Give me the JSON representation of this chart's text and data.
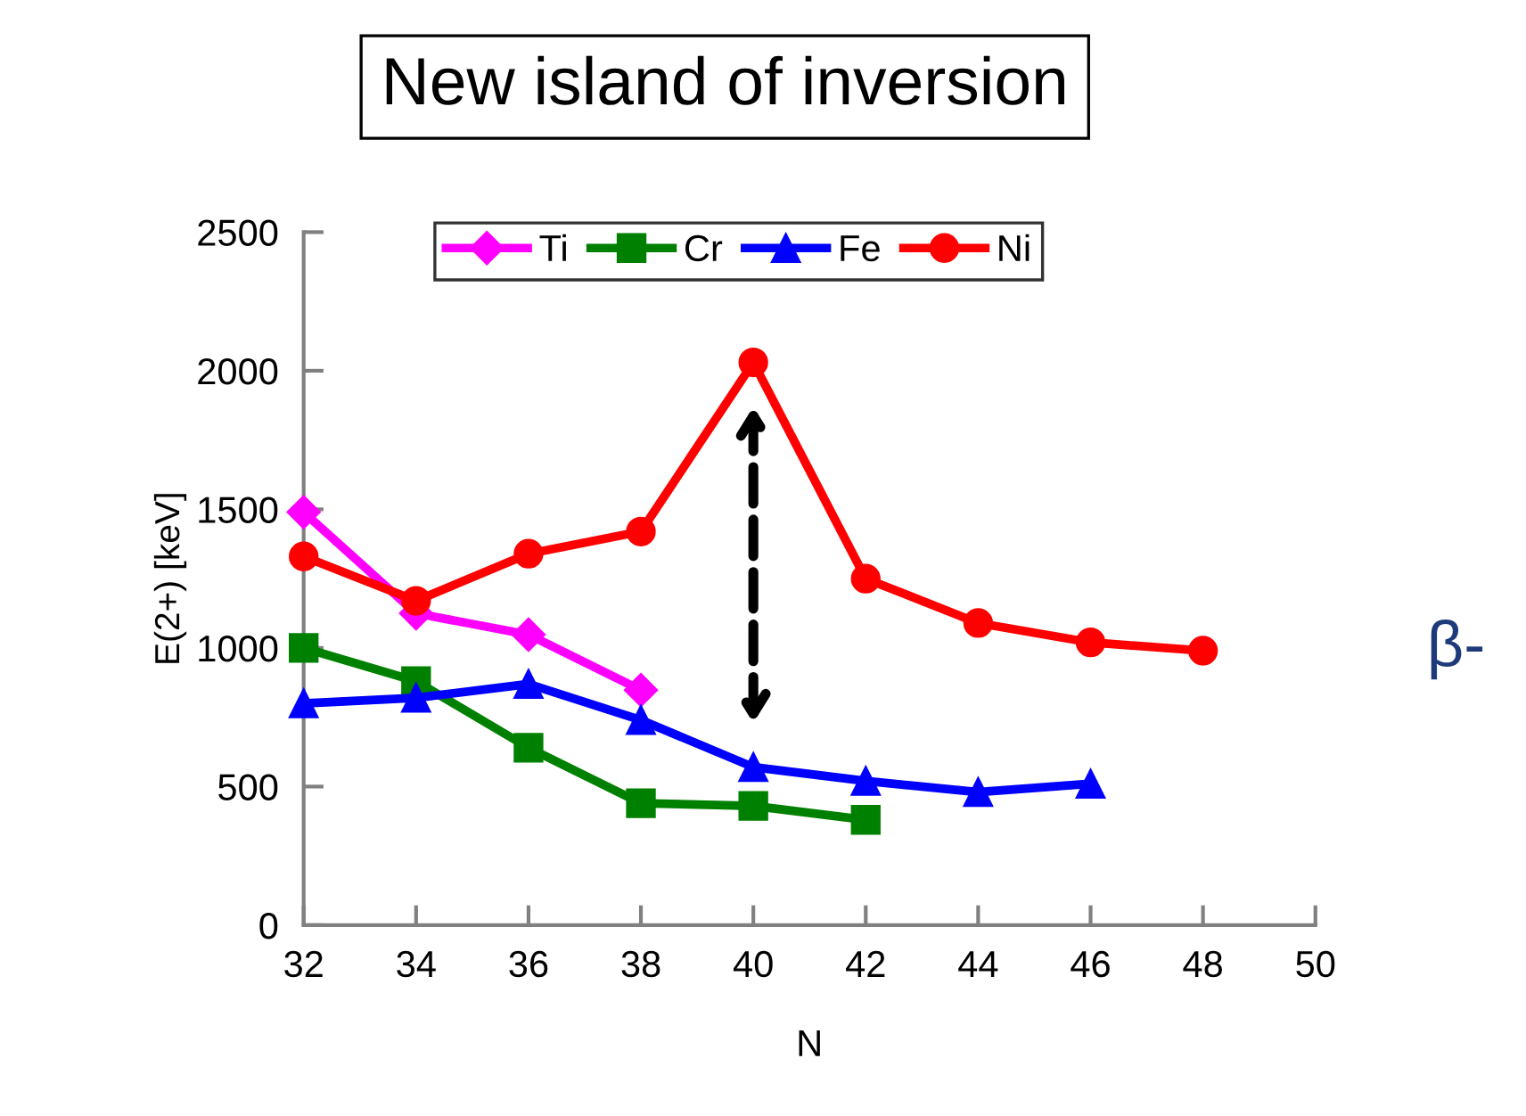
{
  "chart_data": {
    "type": "line",
    "title": "New island of inversion",
    "xlabel": "N",
    "ylabel": "E(2+) [keV]",
    "series": [
      {
        "name": "Ti",
        "color": "#ff00ff",
        "marker": "diamond",
        "x": [
          32,
          34,
          36,
          38
        ],
        "values": [
          1490,
          1125,
          1048,
          848
        ]
      },
      {
        "name": "Cr",
        "color": "#008000",
        "marker": "square",
        "x": [
          32,
          34,
          36,
          38,
          40,
          42
        ],
        "values": [
          1000,
          880,
          640,
          440,
          430,
          380
        ]
      },
      {
        "name": "Fe",
        "color": "#0000ff",
        "marker": "triangle",
        "x": [
          32,
          34,
          36,
          38,
          40,
          42,
          44,
          46
        ],
        "values": [
          800,
          820,
          870,
          740,
          570,
          520,
          480,
          510
        ]
      },
      {
        "name": "Ni",
        "color": "#ff0000",
        "marker": "circle",
        "x": [
          32,
          34,
          36,
          38,
          40,
          42,
          44,
          46,
          48
        ],
        "values": [
          1330,
          1170,
          1340,
          1420,
          2030,
          1250,
          1090,
          1020,
          990
        ]
      }
    ],
    "xlim": [
      32,
      50
    ],
    "xticks": [
      32,
      34,
      36,
      38,
      40,
      42,
      44,
      46,
      48,
      50
    ],
    "ylim": [
      0,
      2500
    ],
    "yticks": [
      0,
      500,
      1000,
      1500,
      2000,
      2500
    ],
    "grid": false,
    "legend": "top",
    "line_style": "solid",
    "annotations": [
      "β-"
    ]
  }
}
